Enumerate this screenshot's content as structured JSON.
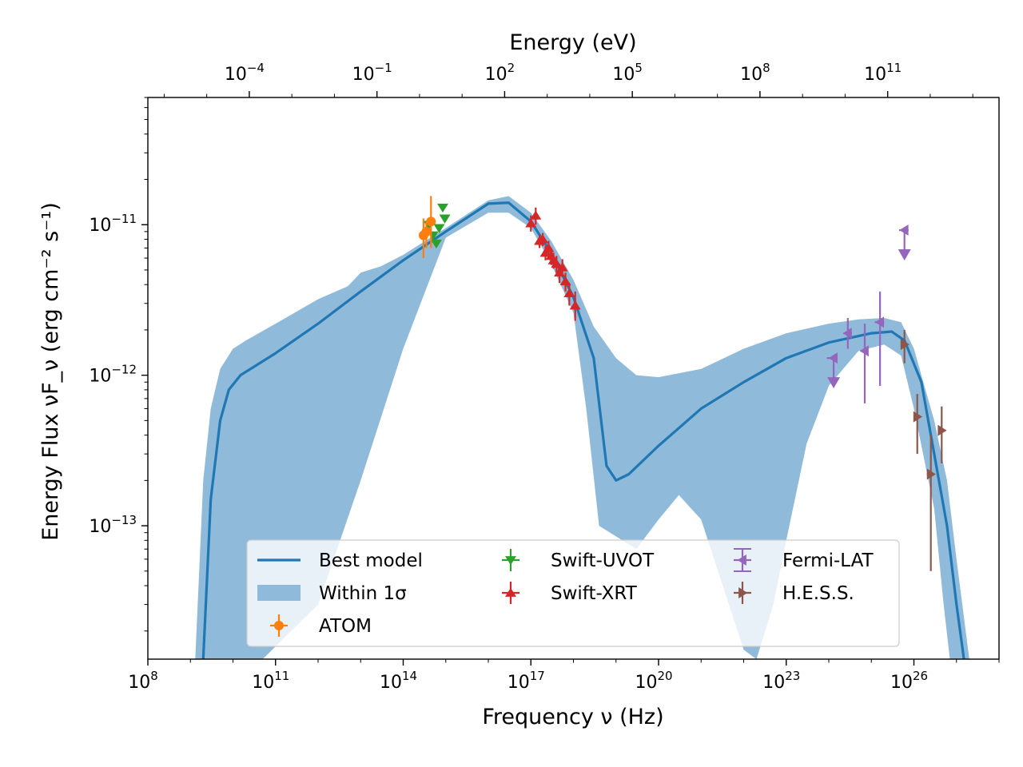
{
  "chart_data": {
    "type": "scatter",
    "xlabel": "Frequency ν (Hz)",
    "ylabel": "Energy Flux νF_ν (erg cm⁻² s⁻¹)",
    "x2label": "Energy (eV)",
    "x_scale": "log",
    "y_scale": "log",
    "xlim": [
      100000000.0,
      1e+28
    ],
    "ylim": [
      1.3e-14,
      7e-11
    ],
    "x_ticks": [
      "10^8",
      "10^11",
      "10^14",
      "10^17",
      "10^20",
      "10^23",
      "10^26"
    ],
    "y_ticks": [
      "10^-13",
      "10^-12",
      "10^-11"
    ],
    "x2_ticks": [
      "10^-4",
      "10^-1",
      "10^2",
      "10^5",
      "10^8",
      "10^11"
    ],
    "legend_position": "bottom-center",
    "legend": [
      "Best model",
      "Within 1σ",
      "ATOM",
      "Swift-UVOT",
      "Swift-XRT",
      "Fermi-LAT",
      "H.E.S.S."
    ],
    "colors": {
      "model": "#1f77b4",
      "band": "#8fbad9",
      "ATOM": "#ff7f0e",
      "Swift-UVOT": "#2ca02c",
      "Swift-XRT": "#d62728",
      "Fermi-LAT": "#9467bd",
      "H.E.S.S.": "#8c564b"
    },
    "series": [
      {
        "name": "Best model",
        "kind": "line",
        "points": [
          [
            2000000000.0,
            1.3e-14
          ],
          [
            3000000000.0,
            1.5e-13
          ],
          [
            5000000000.0,
            5e-13
          ],
          [
            8000000000.0,
            8e-13
          ],
          [
            15000000000.0,
            1e-12
          ],
          [
            100000000000.0,
            1.4e-12
          ],
          [
            1000000000000.0,
            2.2e-12
          ],
          [
            10000000000000.0,
            3.6e-12
          ],
          [
            100000000000000.0,
            5.8e-12
          ],
          [
            1000000000000000.0,
            9e-12
          ],
          [
            1e+16,
            1.38e-11
          ],
          [
            3e+16,
            1.4e-11
          ],
          [
            1e+17,
            1.05e-11
          ],
          [
            3e+17,
            6.5e-12
          ],
          [
            1e+18,
            3.3e-12
          ],
          [
            3e+18,
            1.3e-12
          ],
          [
            6e+18,
            2.5e-13
          ],
          [
            1e+19,
            2e-13
          ],
          [
            2e+19,
            2.2e-13
          ],
          [
            1e+20,
            3.4e-13
          ],
          [
            1e+21,
            6e-13
          ],
          [
            1e+22,
            9e-13
          ],
          [
            1e+23,
            1.3e-12
          ],
          [
            1e+24,
            1.65e-12
          ],
          [
            1e+25,
            1.9e-12
          ],
          [
            3e+25,
            1.95e-12
          ],
          [
            6e+25,
            1.7e-12
          ],
          [
            1.5e+26,
            9e-13
          ],
          [
            3e+26,
            3e-13
          ],
          [
            6e+26,
            1e-13
          ],
          [
            1e+27,
            3e-14
          ],
          [
            1.5e+27,
            1.3e-14
          ]
        ]
      },
      {
        "name": "Within 1σ",
        "kind": "band",
        "upper": [
          [
            1300000000.0,
            1.3e-14
          ],
          [
            2000000000.0,
            2e-13
          ],
          [
            3000000000.0,
            6e-13
          ],
          [
            5000000000.0,
            1.1e-12
          ],
          [
            10000000000.0,
            1.5e-12
          ],
          [
            20000000000.0,
            1.7e-12
          ],
          [
            100000000000.0,
            2.2e-12
          ],
          [
            1000000000000.0,
            3.2e-12
          ],
          [
            5000000000000.0,
            3.9e-12
          ],
          [
            10000000000000.0,
            4.8e-12
          ],
          [
            30000000000000.0,
            5.3e-12
          ],
          [
            100000000000000.0,
            6.3e-12
          ],
          [
            1000000000000000.0,
            9.5e-12
          ],
          [
            1e+16,
            1.45e-11
          ],
          [
            3e+16,
            1.55e-11
          ],
          [
            1e+17,
            1.2e-11
          ],
          [
            3e+17,
            7.8e-12
          ],
          [
            1e+18,
            4.3e-12
          ],
          [
            3e+18,
            2.1e-12
          ],
          [
            1e+19,
            1.3e-12
          ],
          [
            3e+19,
            1e-12
          ],
          [
            1e+20,
            9.7e-13
          ],
          [
            1e+21,
            1.1e-12
          ],
          [
            1e+22,
            1.5e-12
          ],
          [
            1e+23,
            1.9e-12
          ],
          [
            1e+24,
            2.2e-12
          ],
          [
            5e+24,
            2.35e-12
          ],
          [
            2e+25,
            2.4e-12
          ],
          [
            5e+25,
            2.25e-12
          ],
          [
            1e+26,
            1.5e-12
          ],
          [
            3e+26,
            5e-13
          ],
          [
            6e+26,
            2e-13
          ],
          [
            1e+27,
            6e-14
          ],
          [
            2e+27,
            1.3e-14
          ]
        ],
        "lower": [
          [
            1300000000.0,
            1.3e-14
          ],
          [
            3000000000.0,
            1.3e-14
          ],
          [
            10000000000.0,
            1.3e-14
          ],
          [
            50000000000.0,
            1.3e-14
          ],
          [
            1000000000000.0,
            3e-14
          ],
          [
            10000000000000.0,
            2e-13
          ],
          [
            100000000000000.0,
            1.5e-12
          ],
          [
            1000000000000000.0,
            8.2e-12
          ],
          [
            1e+16,
            1.2e-11
          ],
          [
            3e+16,
            1.2e-11
          ],
          [
            1e+17,
            9.5e-12
          ],
          [
            3e+17,
            5.5e-12
          ],
          [
            1e+18,
            2.6e-12
          ],
          [
            2e+18,
            6e-13
          ],
          [
            4e+18,
            1e-13
          ],
          [
            1e+19,
            8.5e-14
          ],
          [
            3e+19,
            7e-14
          ],
          [
            1e+20,
            1.1e-13
          ],
          [
            3e+20,
            1.6e-13
          ],
          [
            1e+21,
            1.1e-13
          ],
          [
            1e+22,
            1.5e-14
          ],
          [
            2e+22,
            1.3e-14
          ],
          [
            5e+22,
            3e-14
          ],
          [
            1e+23,
            8e-14
          ],
          [
            3e+23,
            3.5e-13
          ],
          [
            1e+24,
            8.5e-13
          ],
          [
            5e+24,
            1.45e-12
          ],
          [
            2e+25,
            1.6e-12
          ],
          [
            5e+25,
            1.35e-12
          ],
          [
            1e+26,
            6e-13
          ],
          [
            3e+26,
            1.3e-13
          ],
          [
            5e+26,
            3e-14
          ],
          [
            7e+26,
            1.3e-14
          ]
        ]
      },
      {
        "name": "ATOM",
        "kind": "points",
        "marker": "circle",
        "points": [
          {
            "x": 300000000000000.0,
            "y": 8.5e-12,
            "ylo": 6e-12,
            "yhi": 1.1e-11
          },
          {
            "x": 350000000000000.0,
            "y": 9e-12,
            "ylo": 7e-12,
            "yhi": 1.05e-11
          },
          {
            "x": 450000000000000.0,
            "y": 1.05e-11,
            "ylo": 7e-12,
            "yhi": 1.55e-11
          }
        ]
      },
      {
        "name": "Swift-UVOT",
        "kind": "points",
        "marker": "triangle-down",
        "points": [
          {
            "x": 400000000000000.0,
            "y": 1e-11
          },
          {
            "x": 500000000000000.0,
            "y": 8.5e-12
          },
          {
            "x": 600000000000000.0,
            "y": 7.5e-12
          },
          {
            "x": 700000000000000.0,
            "y": 9.5e-12
          },
          {
            "x": 850000000000000.0,
            "y": 1.3e-11
          },
          {
            "x": 950000000000000.0,
            "y": 1.1e-11
          }
        ]
      },
      {
        "name": "Swift-XRT",
        "kind": "points",
        "marker": "triangle-up",
        "points": [
          {
            "x": 1e+17,
            "y": 1.02e-11,
            "ylo": 9e-12,
            "yhi": 1.15e-11
          },
          {
            "x": 1.3e+17,
            "y": 1.15e-11,
            "ylo": 1e-11,
            "yhi": 1.3e-11
          },
          {
            "x": 1.6e+17,
            "y": 7.8e-12,
            "ylo": 7e-12,
            "yhi": 8.6e-12
          },
          {
            "x": 1.9e+17,
            "y": 8e-12,
            "ylo": 7.2e-12,
            "yhi": 8.8e-12
          },
          {
            "x": 2.2e+17,
            "y": 6.5e-12,
            "ylo": 5.8e-12,
            "yhi": 7.2e-12
          },
          {
            "x": 2.6e+17,
            "y": 7e-12,
            "ylo": 6.2e-12,
            "yhi": 7.8e-12
          },
          {
            "x": 3e+17,
            "y": 6.2e-12,
            "ylo": 5.4e-12,
            "yhi": 7e-12
          },
          {
            "x": 3.4e+17,
            "y": 5.8e-12,
            "ylo": 5.1e-12,
            "yhi": 6.5e-12
          },
          {
            "x": 4e+17,
            "y": 5.5e-12,
            "ylo": 4.8e-12,
            "yhi": 6.2e-12
          },
          {
            "x": 4.7e+17,
            "y": 4.8e-12,
            "ylo": 4.1e-12,
            "yhi": 5.5e-12
          },
          {
            "x": 5.5e+17,
            "y": 5.2e-12,
            "ylo": 4.5e-12,
            "yhi": 5.9e-12
          },
          {
            "x": 6.5e+17,
            "y": 4.2e-12,
            "ylo": 3.6e-12,
            "yhi": 4.8e-12
          },
          {
            "x": 8e+17,
            "y": 3.5e-12,
            "ylo": 2.9e-12,
            "yhi": 4.1e-12
          },
          {
            "x": 1.1e+18,
            "y": 2.9e-12,
            "ylo": 2.3e-12,
            "yhi": 3.6e-12
          }
        ]
      },
      {
        "name": "Fermi-LAT",
        "kind": "points",
        "marker": "left-arrow",
        "points": [
          {
            "x": 1.3e+24,
            "y": 1.3e-12,
            "xlo": 9e+23,
            "xhi": 1.6e+24,
            "upper_limit": true
          },
          {
            "x": 2.8e+24,
            "y": 1.9e-12,
            "xlo": 2.2e+24,
            "xhi": 3.5e+24,
            "ylo": 1.5e-12,
            "yhi": 2.4e-12
          },
          {
            "x": 7e+24,
            "y": 1.45e-12,
            "xlo": 5.5e+24,
            "xhi": 8.5e+24,
            "ylo": 6.5e-13,
            "yhi": 2.2e-12
          },
          {
            "x": 1.6e+25,
            "y": 2.25e-12,
            "xlo": 1.2e+25,
            "xhi": 2e+25,
            "ylo": 8.5e-13,
            "yhi": 3.6e-12
          },
          {
            "x": 6e+25,
            "y": 9.2e-12,
            "xlo": 4.5e+25,
            "xhi": 7.5e+25,
            "upper_limit": true
          }
        ]
      },
      {
        "name": "H.E.S.S.",
        "kind": "points",
        "marker": "right-arrow",
        "points": [
          {
            "x": 6e+25,
            "y": 1.6e-12,
            "xlo": 5e+25,
            "xhi": 7e+25,
            "ylo": 1.2e-12,
            "yhi": 2e-12
          },
          {
            "x": 1.2e+26,
            "y": 5.3e-13,
            "xlo": 1e+26,
            "xhi": 1.4e+26,
            "ylo": 3e-13,
            "yhi": 7.5e-13
          },
          {
            "x": 2.5e+26,
            "y": 2.2e-13,
            "xlo": 2e+26,
            "xhi": 3e+26,
            "ylo": 5e-14,
            "yhi": 4e-13
          },
          {
            "x": 4.5e+26,
            "y": 4.3e-13,
            "xlo": 3.7e+26,
            "xhi": 5.3e+26,
            "ylo": 2.6e-13,
            "yhi": 6.2e-13
          }
        ]
      }
    ]
  }
}
